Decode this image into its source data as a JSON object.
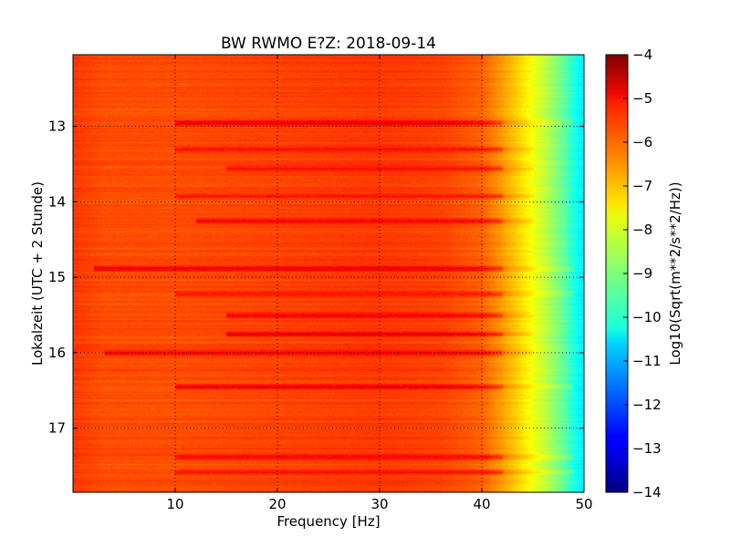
{
  "chart_data": {
    "type": "heatmap",
    "title": "BW RWMO E?Z: 2018-09-14",
    "xlabel": "Frequency [Hz]",
    "ylabel": "Lokalzeit (UTC + 2 Stunde)",
    "xlim": [
      0,
      50
    ],
    "ylim": [
      12.05,
      17.85
    ],
    "y_inverted": true,
    "x_ticks": [
      10,
      20,
      30,
      40,
      50
    ],
    "x_tick_labels": [
      "10",
      "20",
      "30",
      "40",
      "50"
    ],
    "y_ticks": [
      13,
      14,
      15,
      16,
      17
    ],
    "y_tick_labels": [
      "13",
      "14",
      "15",
      "16",
      "17"
    ],
    "grid": true,
    "colormap": "jet",
    "colorbar": {
      "label": "Log10(Sqrt(m**2/s**2/Hz))",
      "range": [
        -14,
        -4
      ],
      "ticks": [
        -4,
        -5,
        -6,
        -7,
        -8,
        -9,
        -10,
        -11,
        -12,
        -13,
        -14
      ],
      "tick_labels": [
        "−4",
        "−5",
        "−6",
        "−7",
        "−8",
        "−9",
        "−10",
        "−11",
        "−12",
        "−13",
        "−14"
      ]
    },
    "frequency_profile": {
      "description_points_hz": [
        0,
        3,
        10,
        20,
        30,
        36,
        40,
        42,
        44,
        46,
        48,
        49,
        50
      ],
      "base_log10": [
        -5.8,
        -6.0,
        -6.0,
        -5.9,
        -5.8,
        -5.9,
        -6.2,
        -6.8,
        -7.5,
        -8.3,
        -9.3,
        -10.0,
        -10.5
      ]
    },
    "strong_bands": [
      {
        "time": 12.95,
        "freq_range": [
          10,
          49
        ],
        "value": -4.8
      },
      {
        "time": 14.88,
        "freq_range": [
          2,
          49
        ],
        "value": -4.9
      },
      {
        "time": 16.45,
        "freq_range": [
          10,
          49
        ],
        "value": -4.8
      }
    ],
    "moderate_bands": [
      {
        "time": 13.3,
        "freq_range": [
          10,
          45
        ],
        "value": -5.2
      },
      {
        "time": 13.55,
        "freq_range": [
          15,
          45
        ],
        "value": -5.2
      },
      {
        "time": 13.92,
        "freq_range": [
          10,
          45
        ],
        "value": -5.3
      },
      {
        "time": 14.25,
        "freq_range": [
          12,
          45
        ],
        "value": -5.1
      },
      {
        "time": 15.22,
        "freq_range": [
          10,
          49
        ],
        "value": -5.2
      },
      {
        "time": 15.5,
        "freq_range": [
          15,
          45
        ],
        "value": -5.0
      },
      {
        "time": 15.75,
        "freq_range": [
          15,
          45
        ],
        "value": -4.9
      },
      {
        "time": 16.0,
        "freq_range": [
          3,
          45
        ],
        "value": -5.1
      },
      {
        "time": 17.38,
        "freq_range": [
          10,
          49
        ],
        "value": -5.2
      },
      {
        "time": 17.58,
        "freq_range": [
          10,
          49
        ],
        "value": -5.3
      }
    ]
  }
}
